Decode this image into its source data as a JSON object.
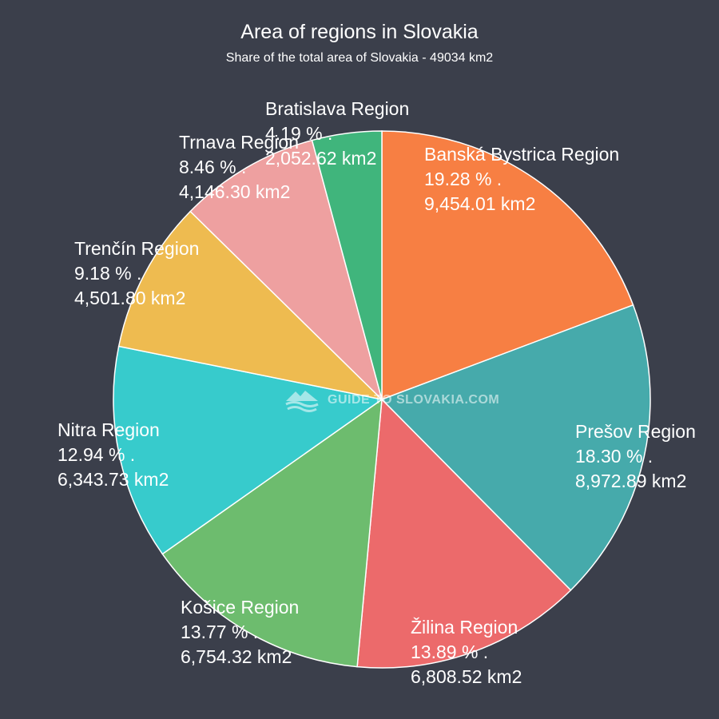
{
  "chart_data": {
    "type": "pie",
    "title": "Area of regions in Slovakia",
    "subtitle": "Share of the total area of Slovakia - 49034 km2",
    "slices": [
      {
        "label": "Banská Bystrica Region",
        "percent": 19.28,
        "percent_text": "19.28 %  .",
        "area_text": "9,454.01 km2",
        "color": "#f77f43"
      },
      {
        "label": "Prešov Region",
        "percent": 18.3,
        "percent_text": "18.30 %  .",
        "area_text": "8,972.89 km2",
        "color": "#46aaab"
      },
      {
        "label": "Žilina Region",
        "percent": 13.89,
        "percent_text": "13.89 %  .",
        "area_text": "6,808.52 km2",
        "color": "#ec6a6b"
      },
      {
        "label": "Košice Region",
        "percent": 13.77,
        "percent_text": "13.77 %  .",
        "area_text": "6,754.32 km2",
        "color": "#6dbc6e"
      },
      {
        "label": "Nitra Region",
        "percent": 12.94,
        "percent_text": "12.94 %  .",
        "area_text": "6,343.73 km2",
        "color": "#37cbcc"
      },
      {
        "label": "Trenčín Region",
        "percent": 9.18,
        "percent_text": "9.18 %  .",
        "area_text": "4,501.80 km2",
        "color": "#eebb50"
      },
      {
        "label": "Trnava Region",
        "percent": 8.46,
        "percent_text": "8.46 %  .",
        "area_text": "4,146.30 km2",
        "color": "#eea0a0"
      },
      {
        "label": "Bratislava Region",
        "percent": 4.19,
        "percent_text": "4.19 %  .",
        "area_text": "2,052.62 km2",
        "color": "#40b57c"
      }
    ]
  },
  "watermark": {
    "text": "GUIDE TO SLOVAKIA.COM",
    "icon": "mountain-waves-icon"
  }
}
